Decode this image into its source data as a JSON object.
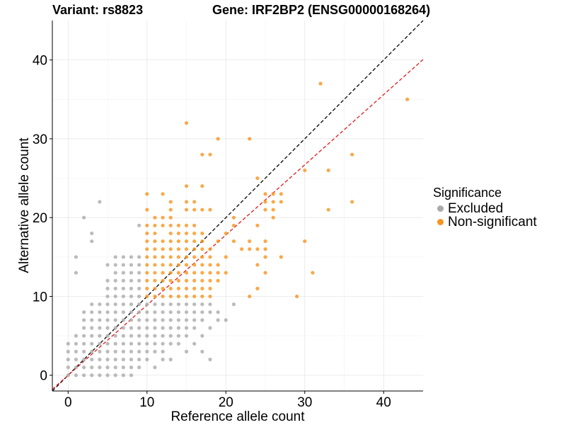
{
  "title_variant": "Variant: rs8823",
  "title_gene": "Gene: IRF2BP2 (ENSG00000168264)",
  "legend": {
    "title": "Significance",
    "items": [
      {
        "label": "Excluded",
        "color": "#aaaaaa"
      },
      {
        "label": "Non-significant",
        "color": "#f7941d"
      }
    ]
  },
  "chart_data": {
    "type": "scatter",
    "xlabel": "Reference allele count",
    "ylabel": "Alternative allele count",
    "xlim": [
      -2,
      45
    ],
    "ylim": [
      -2,
      45
    ],
    "xticks": [
      0,
      10,
      20,
      30,
      40
    ],
    "yticks": [
      0,
      10,
      20,
      30,
      40
    ],
    "grid": true,
    "legend_position": "right",
    "reference_lines": [
      {
        "name": "y = x",
        "slope": 1,
        "intercept": 0,
        "color": "#000000",
        "style": "dashed"
      },
      {
        "name": "fit",
        "slope": 0.89,
        "intercept": 0,
        "color": "#e41a1c",
        "style": "dashed"
      }
    ],
    "series": [
      {
        "name": "Excluded",
        "color": "#aaaaaa",
        "points": [
          [
            0,
            0
          ],
          [
            0,
            1
          ],
          [
            0,
            2
          ],
          [
            0,
            3
          ],
          [
            0,
            4
          ],
          [
            1,
            0
          ],
          [
            1,
            1
          ],
          [
            1,
            2
          ],
          [
            1,
            3
          ],
          [
            1,
            4
          ],
          [
            1,
            5
          ],
          [
            1,
            13
          ],
          [
            1,
            15
          ],
          [
            2,
            0
          ],
          [
            2,
            1
          ],
          [
            2,
            2
          ],
          [
            2,
            3
          ],
          [
            2,
            4
          ],
          [
            2,
            5
          ],
          [
            2,
            6
          ],
          [
            2,
            7
          ],
          [
            2,
            8
          ],
          [
            2,
            20
          ],
          [
            3,
            0
          ],
          [
            3,
            1
          ],
          [
            3,
            2
          ],
          [
            3,
            3
          ],
          [
            3,
            4
          ],
          [
            3,
            5
          ],
          [
            3,
            6
          ],
          [
            3,
            7
          ],
          [
            3,
            8
          ],
          [
            3,
            9
          ],
          [
            3,
            17
          ],
          [
            3,
            18
          ],
          [
            4,
            0
          ],
          [
            4,
            1
          ],
          [
            4,
            2
          ],
          [
            4,
            3
          ],
          [
            4,
            4
          ],
          [
            4,
            5
          ],
          [
            4,
            6
          ],
          [
            4,
            7
          ],
          [
            4,
            8
          ],
          [
            4,
            9
          ],
          [
            4,
            22
          ],
          [
            5,
            0
          ],
          [
            5,
            1
          ],
          [
            5,
            2
          ],
          [
            5,
            3
          ],
          [
            5,
            4
          ],
          [
            5,
            5
          ],
          [
            5,
            6
          ],
          [
            5,
            7
          ],
          [
            5,
            8
          ],
          [
            5,
            9
          ],
          [
            5,
            10
          ],
          [
            5,
            11
          ],
          [
            5,
            12
          ],
          [
            5,
            14
          ],
          [
            6,
            0
          ],
          [
            6,
            1
          ],
          [
            6,
            2
          ],
          [
            6,
            3
          ],
          [
            6,
            4
          ],
          [
            6,
            5
          ],
          [
            6,
            6
          ],
          [
            6,
            7
          ],
          [
            6,
            8
          ],
          [
            6,
            9
          ],
          [
            6,
            10
          ],
          [
            6,
            11
          ],
          [
            6,
            12
          ],
          [
            6,
            13
          ],
          [
            6,
            14
          ],
          [
            6,
            15
          ],
          [
            7,
            0
          ],
          [
            7,
            1
          ],
          [
            7,
            2
          ],
          [
            7,
            3
          ],
          [
            7,
            4
          ],
          [
            7,
            5
          ],
          [
            7,
            6
          ],
          [
            7,
            7
          ],
          [
            7,
            8
          ],
          [
            7,
            9
          ],
          [
            7,
            10
          ],
          [
            7,
            11
          ],
          [
            7,
            12
          ],
          [
            7,
            13
          ],
          [
            7,
            14
          ],
          [
            7,
            15
          ],
          [
            8,
            0
          ],
          [
            8,
            1
          ],
          [
            8,
            2
          ],
          [
            8,
            3
          ],
          [
            8,
            4
          ],
          [
            8,
            5
          ],
          [
            8,
            6
          ],
          [
            8,
            7
          ],
          [
            8,
            8
          ],
          [
            8,
            9
          ],
          [
            8,
            10
          ],
          [
            8,
            11
          ],
          [
            8,
            12
          ],
          [
            8,
            13
          ],
          [
            8,
            14
          ],
          [
            8,
            15
          ],
          [
            9,
            1
          ],
          [
            9,
            2
          ],
          [
            9,
            3
          ],
          [
            9,
            4
          ],
          [
            9,
            5
          ],
          [
            9,
            6
          ],
          [
            9,
            7
          ],
          [
            9,
            8
          ],
          [
            9,
            9
          ],
          [
            9,
            10
          ],
          [
            9,
            11
          ],
          [
            9,
            12
          ],
          [
            9,
            13
          ],
          [
            9,
            14
          ],
          [
            9,
            15
          ],
          [
            9,
            19
          ],
          [
            10,
            2
          ],
          [
            10,
            3
          ],
          [
            10,
            4
          ],
          [
            10,
            5
          ],
          [
            10,
            6
          ],
          [
            10,
            7
          ],
          [
            10,
            8
          ],
          [
            10,
            9
          ],
          [
            11,
            1
          ],
          [
            11,
            3
          ],
          [
            11,
            4
          ],
          [
            11,
            5
          ],
          [
            11,
            6
          ],
          [
            11,
            7
          ],
          [
            11,
            8
          ],
          [
            11,
            9
          ],
          [
            12,
            2
          ],
          [
            12,
            3
          ],
          [
            12,
            4
          ],
          [
            12,
            5
          ],
          [
            12,
            6
          ],
          [
            12,
            7
          ],
          [
            12,
            8
          ],
          [
            12,
            9
          ],
          [
            13,
            2
          ],
          [
            13,
            4
          ],
          [
            13,
            5
          ],
          [
            13,
            6
          ],
          [
            13,
            7
          ],
          [
            13,
            8
          ],
          [
            13,
            9
          ],
          [
            14,
            4
          ],
          [
            14,
            5
          ],
          [
            14,
            6
          ],
          [
            14,
            7
          ],
          [
            14,
            8
          ],
          [
            14,
            9
          ],
          [
            15,
            3
          ],
          [
            15,
            5
          ],
          [
            15,
            6
          ],
          [
            15,
            7
          ],
          [
            15,
            8
          ],
          [
            15,
            9
          ],
          [
            16,
            4
          ],
          [
            16,
            6
          ],
          [
            16,
            7
          ],
          [
            16,
            8
          ],
          [
            16,
            9
          ],
          [
            17,
            3
          ],
          [
            17,
            5
          ],
          [
            17,
            7
          ],
          [
            17,
            8
          ],
          [
            17,
            9
          ],
          [
            18,
            2
          ],
          [
            18,
            6
          ],
          [
            18,
            8
          ],
          [
            18,
            9
          ],
          [
            19,
            7
          ],
          [
            19,
            8
          ],
          [
            20,
            7
          ],
          [
            21,
            9
          ]
        ]
      },
      {
        "name": "Non-significant",
        "color": "#f7941d",
        "points": [
          [
            10,
            10
          ],
          [
            10,
            11
          ],
          [
            10,
            12
          ],
          [
            10,
            13
          ],
          [
            10,
            14
          ],
          [
            10,
            15
          ],
          [
            10,
            16
          ],
          [
            10,
            17
          ],
          [
            10,
            18
          ],
          [
            10,
            19
          ],
          [
            10,
            21
          ],
          [
            10,
            23
          ],
          [
            11,
            10
          ],
          [
            11,
            11
          ],
          [
            11,
            12
          ],
          [
            11,
            13
          ],
          [
            11,
            14
          ],
          [
            11,
            15
          ],
          [
            11,
            16
          ],
          [
            11,
            17
          ],
          [
            11,
            18
          ],
          [
            11,
            19
          ],
          [
            11,
            20
          ],
          [
            12,
            10
          ],
          [
            12,
            11
          ],
          [
            12,
            12
          ],
          [
            12,
            13
          ],
          [
            12,
            14
          ],
          [
            12,
            15
          ],
          [
            12,
            16
          ],
          [
            12,
            17
          ],
          [
            12,
            19
          ],
          [
            12,
            20
          ],
          [
            12,
            23
          ],
          [
            13,
            10
          ],
          [
            13,
            11
          ],
          [
            13,
            12
          ],
          [
            13,
            13
          ],
          [
            13,
            14
          ],
          [
            13,
            15
          ],
          [
            13,
            16
          ],
          [
            13,
            17
          ],
          [
            13,
            18
          ],
          [
            13,
            19
          ],
          [
            13,
            20
          ],
          [
            13,
            21
          ],
          [
            13,
            22
          ],
          [
            14,
            10
          ],
          [
            14,
            11
          ],
          [
            14,
            12
          ],
          [
            14,
            13
          ],
          [
            14,
            14
          ],
          [
            14,
            15
          ],
          [
            14,
            16
          ],
          [
            14,
            17
          ],
          [
            14,
            18
          ],
          [
            14,
            19
          ],
          [
            15,
            10
          ],
          [
            15,
            11
          ],
          [
            15,
            12
          ],
          [
            15,
            13
          ],
          [
            15,
            14
          ],
          [
            15,
            15
          ],
          [
            15,
            16
          ],
          [
            15,
            17
          ],
          [
            15,
            18
          ],
          [
            15,
            19
          ],
          [
            15,
            21
          ],
          [
            15,
            22
          ],
          [
            15,
            24
          ],
          [
            15,
            32
          ],
          [
            16,
            10
          ],
          [
            16,
            11
          ],
          [
            16,
            12
          ],
          [
            16,
            13
          ],
          [
            16,
            14
          ],
          [
            16,
            15
          ],
          [
            16,
            16
          ],
          [
            16,
            17
          ],
          [
            16,
            18
          ],
          [
            16,
            19
          ],
          [
            16,
            21
          ],
          [
            16,
            22
          ],
          [
            17,
            10
          ],
          [
            17,
            11
          ],
          [
            17,
            12
          ],
          [
            17,
            13
          ],
          [
            17,
            14
          ],
          [
            17,
            15
          ],
          [
            17,
            16
          ],
          [
            17,
            17
          ],
          [
            17,
            18
          ],
          [
            17,
            21
          ],
          [
            17,
            24
          ],
          [
            17,
            28
          ],
          [
            18,
            10
          ],
          [
            18,
            11
          ],
          [
            18,
            12
          ],
          [
            18,
            13
          ],
          [
            18,
            14
          ],
          [
            18,
            15
          ],
          [
            18,
            16
          ],
          [
            18,
            21
          ],
          [
            18,
            28
          ],
          [
            19,
            12
          ],
          [
            19,
            13
          ],
          [
            19,
            14
          ],
          [
            19,
            17
          ],
          [
            19,
            30
          ],
          [
            20,
            13
          ],
          [
            20,
            15
          ],
          [
            20,
            18
          ],
          [
            21,
            17
          ],
          [
            21,
            19
          ],
          [
            21,
            20
          ],
          [
            22,
            16
          ],
          [
            23,
            10
          ],
          [
            23,
            16
          ],
          [
            23,
            17
          ],
          [
            23,
            30
          ],
          [
            24,
            11
          ],
          [
            24,
            14
          ],
          [
            24,
            16
          ],
          [
            24,
            19
          ],
          [
            24,
            25
          ],
          [
            25,
            13
          ],
          [
            25,
            15
          ],
          [
            25,
            16
          ],
          [
            25,
            17
          ],
          [
            25,
            21
          ],
          [
            25,
            22
          ],
          [
            25,
            23
          ],
          [
            26,
            20
          ],
          [
            26,
            21
          ],
          [
            26,
            22
          ],
          [
            26,
            23
          ],
          [
            27,
            15
          ],
          [
            27,
            22
          ],
          [
            27,
            23
          ],
          [
            29,
            10
          ],
          [
            30,
            17
          ],
          [
            30,
            26
          ],
          [
            31,
            13
          ],
          [
            32,
            37
          ],
          [
            33,
            21
          ],
          [
            33,
            26
          ],
          [
            36,
            22
          ],
          [
            36,
            28
          ],
          [
            43,
            35
          ]
        ]
      }
    ]
  }
}
